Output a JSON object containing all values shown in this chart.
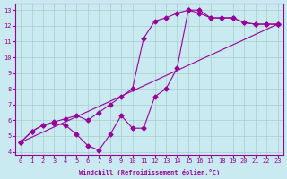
{
  "xlabel": "Windchill (Refroidissement éolien,°C)",
  "ylabel": "",
  "xlim": [
    -0.5,
    23.5
  ],
  "ylim": [
    3.8,
    13.4
  ],
  "xticks": [
    0,
    1,
    2,
    3,
    4,
    5,
    6,
    7,
    8,
    9,
    10,
    11,
    12,
    13,
    14,
    15,
    16,
    17,
    18,
    19,
    20,
    21,
    22,
    23
  ],
  "yticks": [
    4,
    5,
    6,
    7,
    8,
    9,
    10,
    11,
    12,
    13
  ],
  "bg_color": "#c8eaf0",
  "line_color": "#990099",
  "grid_color": "#aacccc",
  "line1_x": [
    0,
    1,
    2,
    3,
    4,
    5,
    6,
    7,
    8,
    9,
    10,
    11,
    12,
    13,
    14,
    15,
    16,
    17,
    18,
    19,
    20,
    21,
    22,
    23
  ],
  "line1_y": [
    4.6,
    5.3,
    5.7,
    5.8,
    5.7,
    5.1,
    4.4,
    4.1,
    5.1,
    6.3,
    5.5,
    5.5,
    7.5,
    8.0,
    9.3,
    13.0,
    13.0,
    12.5,
    12.5,
    12.5,
    12.2,
    12.1,
    12.1,
    12.1
  ],
  "line2_x": [
    0,
    1,
    2,
    3,
    4,
    5,
    6,
    7,
    8,
    9,
    10,
    11,
    12,
    13,
    14,
    15,
    16,
    17,
    18,
    19,
    20,
    21,
    22,
    23
  ],
  "line2_y": [
    4.6,
    5.3,
    5.7,
    5.9,
    6.1,
    6.3,
    6.0,
    6.5,
    7.0,
    7.5,
    8.0,
    11.2,
    12.3,
    12.5,
    12.8,
    13.0,
    12.8,
    12.5,
    12.5,
    12.5,
    12.2,
    12.1,
    12.1,
    12.1
  ],
  "line3_x": [
    0,
    23
  ],
  "line3_y": [
    4.6,
    12.1
  ]
}
